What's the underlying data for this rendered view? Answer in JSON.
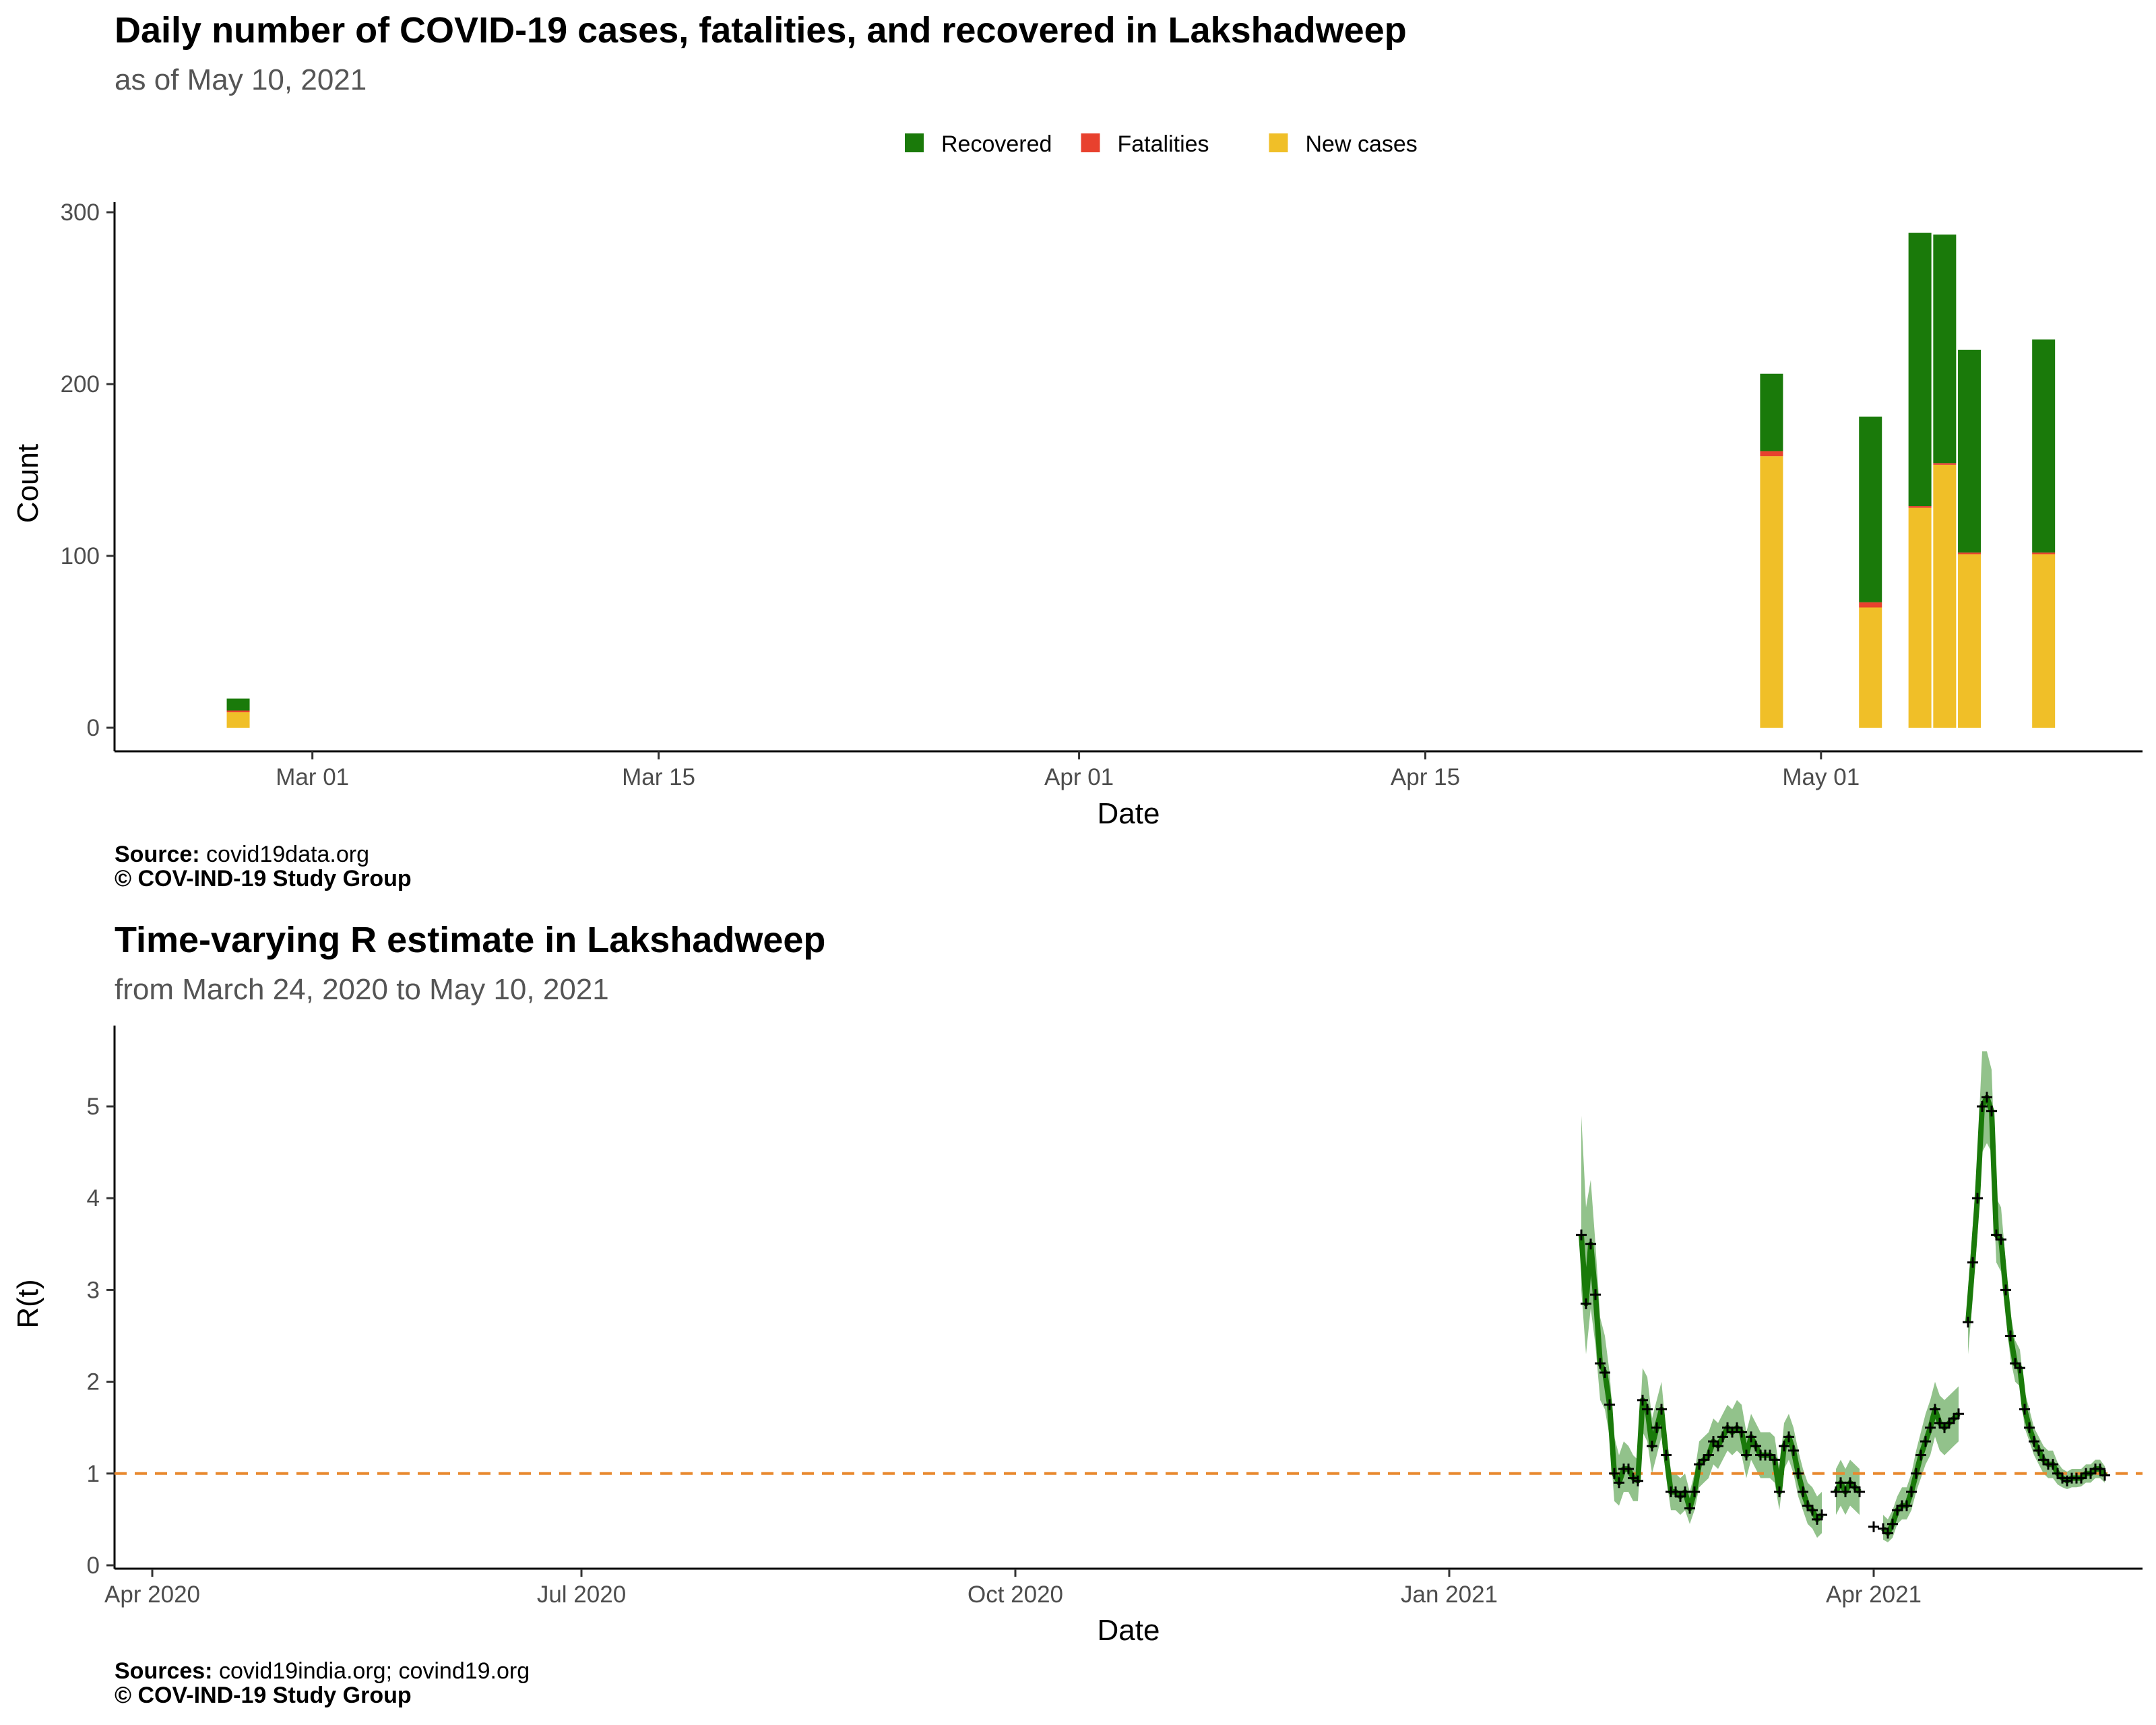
{
  "chart_data": [
    {
      "type": "bar",
      "stacked": true,
      "title": "Daily number of COVID-19 cases, fatalities, and recovered in Lakshadweep",
      "subtitle": "as of May 10, 2021",
      "xlabel": "Date",
      "ylabel": "Count",
      "x_ticks": [
        "Mar 01",
        "Mar 15",
        "Apr 01",
        "Apr 15",
        "May 01"
      ],
      "x_tick_dates": [
        "2021-03-01",
        "2021-03-15",
        "2021-04-01",
        "2021-04-15",
        "2021-05-01"
      ],
      "x_range": [
        "2021-02-21",
        "2021-05-14"
      ],
      "y_ticks": [
        0,
        100,
        200,
        300
      ],
      "ylim": [
        0,
        300
      ],
      "legend_position": "top",
      "grid": false,
      "colors": {
        "Recovered": "#1a7a0a",
        "Fatalities": "#e8412e",
        "New cases": "#f0bf28"
      },
      "legend": [
        "Recovered",
        "Fatalities",
        "New cases"
      ],
      "stack_order": [
        "New cases",
        "Fatalities",
        "Recovered"
      ],
      "dates": [
        "2021-02-26",
        "2021-04-29",
        "2021-05-03",
        "2021-05-05",
        "2021-05-06",
        "2021-05-07",
        "2021-05-10"
      ],
      "series": [
        {
          "name": "New cases",
          "values": [
            9,
            158,
            70,
            128,
            153,
            101,
            101
          ]
        },
        {
          "name": "Fatalities",
          "values": [
            1,
            3,
            3,
            1,
            1,
            1,
            1
          ]
        },
        {
          "name": "Recovered",
          "values": [
            7,
            45,
            108,
            159,
            133,
            118,
            124
          ]
        }
      ],
      "caption": {
        "source_label": "Source:",
        "source": "covid19data.org",
        "copyright": "© COV-IND-19 Study Group"
      }
    },
    {
      "type": "line",
      "title": "Time-varying R estimate in Lakshadweep",
      "subtitle": "from March 24, 2020 to May 10, 2021",
      "xlabel": "Date",
      "ylabel": "R(t)",
      "x_ticks": [
        "Apr 2020",
        "Jul 2020",
        "Oct 2020",
        "Jan 2021",
        "Apr 2021"
      ],
      "x_tick_dates": [
        "2020-04-01",
        "2020-07-01",
        "2020-10-01",
        "2021-01-01",
        "2021-04-01"
      ],
      "x_range": [
        "2020-03-24",
        "2021-05-28"
      ],
      "y_ticks": [
        0,
        1,
        2,
        3,
        4,
        5
      ],
      "ylim": [
        0,
        5.9
      ],
      "reference_line": 1,
      "line_color": "#1a7a0a",
      "band_color": "#8cbf85",
      "reference_color": "#e8892e",
      "grid": false,
      "points": [
        [
          "2021-01-29",
          3.6,
          3.0,
          4.9
        ],
        [
          "2021-01-30",
          2.85,
          2.3,
          3.9
        ],
        [
          "2021-01-31",
          3.5,
          2.8,
          4.2
        ],
        [
          "2021-02-01",
          2.95,
          2.4,
          3.5
        ],
        [
          "2021-02-02",
          2.2,
          1.8,
          2.7
        ],
        [
          "2021-02-03",
          2.1,
          1.7,
          2.5
        ],
        [
          "2021-02-04",
          1.75,
          1.4,
          2.1
        ],
        [
          "2021-02-05",
          1.0,
          0.7,
          1.4
        ],
        [
          "2021-02-06",
          0.9,
          0.65,
          1.2
        ],
        [
          "2021-02-07",
          1.05,
          0.8,
          1.35
        ],
        [
          "2021-02-08",
          1.05,
          0.8,
          1.3
        ],
        [
          "2021-02-09",
          0.95,
          0.7,
          1.2
        ],
        [
          "2021-02-10",
          0.92,
          0.7,
          1.15
        ],
        [
          "2021-02-11",
          1.8,
          1.45,
          2.15
        ],
        [
          "2021-02-12",
          1.7,
          1.35,
          2.05
        ],
        [
          "2021-02-13",
          1.3,
          1.0,
          1.6
        ],
        [
          "2021-02-14",
          1.5,
          1.2,
          1.8
        ],
        [
          "2021-02-15",
          1.7,
          1.4,
          2.0
        ],
        [
          "2021-02-16",
          1.2,
          0.95,
          1.45
        ],
        [
          "2021-02-17",
          0.8,
          0.6,
          1.0
        ],
        [
          "2021-02-18",
          0.8,
          0.6,
          1.0
        ],
        [
          "2021-02-19",
          0.75,
          0.55,
          0.95
        ],
        [
          "2021-02-20",
          0.8,
          0.6,
          1.0
        ],
        [
          "2021-02-21",
          0.62,
          0.45,
          0.8
        ],
        [
          "2021-02-22",
          0.8,
          0.6,
          1.0
        ],
        [
          "2021-02-23",
          1.1,
          0.85,
          1.35
        ],
        [
          "2021-02-24",
          1.15,
          0.9,
          1.4
        ],
        [
          "2021-02-25",
          1.2,
          0.95,
          1.45
        ],
        [
          "2021-02-26",
          1.35,
          1.1,
          1.6
        ],
        [
          "2021-02-27",
          1.3,
          1.05,
          1.55
        ],
        [
          "2021-02-28",
          1.4,
          1.15,
          1.65
        ],
        [
          "2021-03-01",
          1.5,
          1.25,
          1.75
        ],
        [
          "2021-03-02",
          1.45,
          1.2,
          1.7
        ],
        [
          "2021-03-03",
          1.5,
          1.25,
          1.8
        ],
        [
          "2021-03-04",
          1.45,
          1.2,
          1.75
        ],
        [
          "2021-03-05",
          1.2,
          0.95,
          1.45
        ],
        [
          "2021-03-06",
          1.4,
          1.15,
          1.65
        ],
        [
          "2021-03-07",
          1.3,
          1.05,
          1.55
        ],
        [
          "2021-03-08",
          1.2,
          0.95,
          1.45
        ],
        [
          "2021-03-09",
          1.2,
          0.95,
          1.45
        ],
        [
          "2021-03-10",
          1.2,
          0.95,
          1.45
        ],
        [
          "2021-03-11",
          1.15,
          0.9,
          1.4
        ],
        [
          "2021-03-12",
          0.8,
          0.6,
          1.05
        ],
        [
          "2021-03-13",
          1.3,
          1.05,
          1.55
        ],
        [
          "2021-03-14",
          1.4,
          1.15,
          1.65
        ],
        [
          "2021-03-15",
          1.25,
          1.0,
          1.5
        ],
        [
          "2021-03-16",
          1.0,
          0.75,
          1.25
        ],
        [
          "2021-03-17",
          0.8,
          0.6,
          1.05
        ],
        [
          "2021-03-18",
          0.65,
          0.45,
          0.9
        ],
        [
          "2021-03-19",
          0.6,
          0.4,
          0.85
        ],
        [
          "2021-03-20",
          0.5,
          0.3,
          0.75
        ],
        [
          "2021-03-21",
          0.55,
          0.35,
          0.8
        ],
        [
          "2021-03-24",
          0.8,
          0.55,
          1.05
        ],
        [
          "2021-03-25",
          0.9,
          0.65,
          1.15
        ],
        [
          "2021-03-26",
          0.8,
          0.55,
          1.05
        ],
        [
          "2021-03-27",
          0.9,
          0.65,
          1.15
        ],
        [
          "2021-03-28",
          0.85,
          0.6,
          1.1
        ],
        [
          "2021-03-29",
          0.8,
          0.55,
          1.05
        ],
        [
          "2021-04-01",
          0.42,
          0.3,
          0.55
        ],
        [
          "2021-04-03",
          0.4,
          0.28,
          0.55
        ],
        [
          "2021-04-04",
          0.35,
          0.25,
          0.5
        ],
        [
          "2021-04-05",
          0.45,
          0.3,
          0.6
        ],
        [
          "2021-04-06",
          0.6,
          0.45,
          0.75
        ],
        [
          "2021-04-07",
          0.65,
          0.5,
          0.85
        ],
        [
          "2021-04-08",
          0.65,
          0.5,
          0.85
        ],
        [
          "2021-04-09",
          0.8,
          0.6,
          1.0
        ],
        [
          "2021-04-10",
          1.0,
          0.8,
          1.25
        ],
        [
          "2021-04-11",
          1.2,
          0.95,
          1.45
        ],
        [
          "2021-04-12",
          1.35,
          1.1,
          1.65
        ],
        [
          "2021-04-13",
          1.5,
          1.2,
          1.8
        ],
        [
          "2021-04-14",
          1.7,
          1.4,
          2.0
        ],
        [
          "2021-04-15",
          1.55,
          1.25,
          1.85
        ],
        [
          "2021-04-16",
          1.5,
          1.2,
          1.8
        ],
        [
          "2021-04-17",
          1.55,
          1.25,
          1.85
        ],
        [
          "2021-04-18",
          1.6,
          1.3,
          1.9
        ],
        [
          "2021-04-19",
          1.65,
          1.35,
          1.95
        ],
        [
          "2021-04-21",
          2.65,
          2.3,
          3.0
        ],
        [
          "2021-04-22",
          3.3,
          2.9,
          3.7
        ],
        [
          "2021-04-23",
          4.0,
          3.6,
          4.5
        ],
        [
          "2021-04-24",
          5.0,
          4.5,
          5.6
        ],
        [
          "2021-04-25",
          5.1,
          4.6,
          5.6
        ],
        [
          "2021-04-26",
          4.95,
          4.5,
          5.4
        ],
        [
          "2021-04-27",
          3.6,
          3.3,
          4.0
        ],
        [
          "2021-04-28",
          3.55,
          3.2,
          3.9
        ],
        [
          "2021-04-29",
          3.0,
          2.7,
          3.3
        ],
        [
          "2021-04-30",
          2.5,
          2.25,
          2.75
        ],
        [
          "2021-05-01",
          2.2,
          2.0,
          2.45
        ],
        [
          "2021-05-02",
          2.15,
          1.95,
          2.35
        ],
        [
          "2021-05-03",
          1.7,
          1.5,
          1.9
        ],
        [
          "2021-05-04",
          1.5,
          1.35,
          1.7
        ],
        [
          "2021-05-05",
          1.35,
          1.2,
          1.5
        ],
        [
          "2021-05-06",
          1.25,
          1.1,
          1.4
        ],
        [
          "2021-05-07",
          1.15,
          1.0,
          1.3
        ],
        [
          "2021-05-08",
          1.1,
          0.95,
          1.25
        ],
        [
          "2021-05-09",
          1.1,
          0.95,
          1.25
        ],
        [
          "2021-05-10",
          1.0,
          0.88,
          1.12
        ],
        [
          "2021-05-11",
          0.95,
          0.85,
          1.05
        ],
        [
          "2021-05-12",
          0.92,
          0.83,
          1.02
        ],
        [
          "2021-05-13",
          0.95,
          0.85,
          1.05
        ],
        [
          "2021-05-14",
          0.95,
          0.85,
          1.05
        ],
        [
          "2021-05-15",
          0.95,
          0.86,
          1.05
        ],
        [
          "2021-05-16",
          1.0,
          0.9,
          1.1
        ],
        [
          "2021-05-17",
          1.0,
          0.9,
          1.1
        ],
        [
          "2021-05-18",
          1.05,
          0.95,
          1.15
        ],
        [
          "2021-05-19",
          1.05,
          0.95,
          1.15
        ],
        [
          "2021-05-20",
          0.98,
          0.9,
          1.08
        ]
      ],
      "caption": {
        "source_label": "Sources:",
        "source": "covid19india.org; covind19.org",
        "copyright": "© COV-IND-19 Study Group"
      }
    }
  ]
}
